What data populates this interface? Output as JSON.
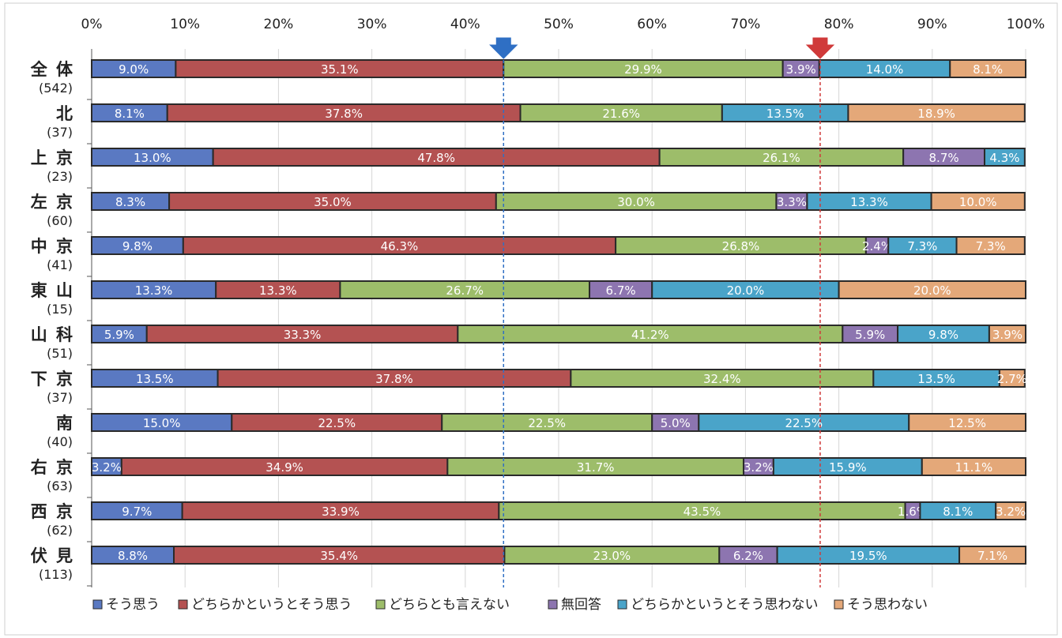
{
  "chart_data": {
    "type": "bar",
    "orientation": "horizontal",
    "stacked": true,
    "percent_stacked": true,
    "xlim": [
      0,
      100
    ],
    "x_tick_labels": [
      "0%",
      "10%",
      "20%",
      "30%",
      "40%",
      "50%",
      "60%",
      "70%",
      "80%",
      "90%",
      "100%"
    ],
    "grid": true,
    "legend_position": "bottom",
    "categories": [
      {
        "name": "全 体",
        "count": "(542)"
      },
      {
        "name": "北",
        "count": "(37)"
      },
      {
        "name": "上 京",
        "count": "(23)"
      },
      {
        "name": "左 京",
        "count": "(60)"
      },
      {
        "name": "中 京",
        "count": "(41)"
      },
      {
        "name": "東 山",
        "count": "(15)"
      },
      {
        "name": "山 科",
        "count": "(51)"
      },
      {
        "name": "下 京",
        "count": "(37)"
      },
      {
        "name": "南",
        "count": "(40)"
      },
      {
        "name": "右 京",
        "count": "(63)"
      },
      {
        "name": "西 京",
        "count": "(62)"
      },
      {
        "name": "伏 見",
        "count": "(113)"
      }
    ],
    "series": [
      {
        "name": "そう思う",
        "color": "#5a79c2",
        "values": [
          9.0,
          8.1,
          13.0,
          8.3,
          9.8,
          13.3,
          5.9,
          13.5,
          15.0,
          3.2,
          9.7,
          8.8
        ]
      },
      {
        "name": "どちらかというとそう思う",
        "color": "#b45252",
        "values": [
          35.1,
          37.8,
          47.8,
          35.0,
          46.3,
          13.3,
          33.3,
          37.8,
          22.5,
          34.9,
          33.9,
          35.4
        ]
      },
      {
        "name": "どちらとも言えない",
        "color": "#9dbd6a",
        "values": [
          29.9,
          21.6,
          26.1,
          30.0,
          26.8,
          26.7,
          41.2,
          32.4,
          22.5,
          31.7,
          43.5,
          23.0
        ]
      },
      {
        "name": "無回答",
        "color": "#8d75b0",
        "values": [
          3.9,
          null,
          8.7,
          3.3,
          2.4,
          6.7,
          5.9,
          null,
          5.0,
          3.2,
          1.6,
          6.2
        ]
      },
      {
        "name": "どちらかというとそう思わない",
        "color": "#4aa4c9",
        "values": [
          14.0,
          13.5,
          4.3,
          13.3,
          7.3,
          20.0,
          9.8,
          13.5,
          22.5,
          15.9,
          8.1,
          19.5
        ]
      },
      {
        "name": "そう思わない",
        "color": "#e4a879",
        "values": [
          8.1,
          18.9,
          null,
          10.0,
          7.3,
          20.0,
          3.9,
          2.7,
          12.5,
          11.1,
          3.2,
          7.1
        ]
      }
    ],
    "value_labels": [
      [
        "9.0%",
        "35.1%",
        "29.9%",
        "3.9%",
        "14.0%",
        "8.1%"
      ],
      [
        "8.1%",
        "37.8%",
        "21.6%",
        "",
        "13.5%",
        "18.9%"
      ],
      [
        "13.0%",
        "47.8%",
        "26.1%",
        "8.7%",
        "4.3%",
        ""
      ],
      [
        "8.3%",
        "35.0%",
        "30.0%",
        "3.3%",
        "13.3%",
        "10.0%"
      ],
      [
        "9.8%",
        "46.3%",
        "26.8%",
        "2.4%",
        "7.3%",
        "7.3%"
      ],
      [
        "13.3%",
        "13.3%",
        "26.7%",
        "6.7%",
        "20.0%",
        "20.0%"
      ],
      [
        "5.9%",
        "33.3%",
        "41.2%",
        "5.9%",
        "9.8%",
        "3.9%"
      ],
      [
        "13.5%",
        "37.8%",
        "32.4%",
        "",
        "13.5%",
        "2.7%"
      ],
      [
        "15.0%",
        "22.5%",
        "22.5%",
        "5.0%",
        "22.5%",
        "12.5%"
      ],
      [
        "3.2%",
        "34.9%",
        "31.7%",
        "3.2%",
        "15.9%",
        "11.1%"
      ],
      [
        "9.7%",
        "33.9%",
        "43.5%",
        "1.6%",
        "8.1%",
        "3.2%"
      ],
      [
        "8.8%",
        "35.4%",
        "23.0%",
        "6.2%",
        "19.5%",
        "7.1%"
      ]
    ],
    "reference_lines": [
      {
        "name": "blue-reference",
        "value": 44.1,
        "color": "#2f6fc4",
        "marker": "down-arrow"
      },
      {
        "name": "red-reference",
        "value": 78.0,
        "color": "#d03a3a",
        "marker": "down-arrow"
      }
    ]
  }
}
